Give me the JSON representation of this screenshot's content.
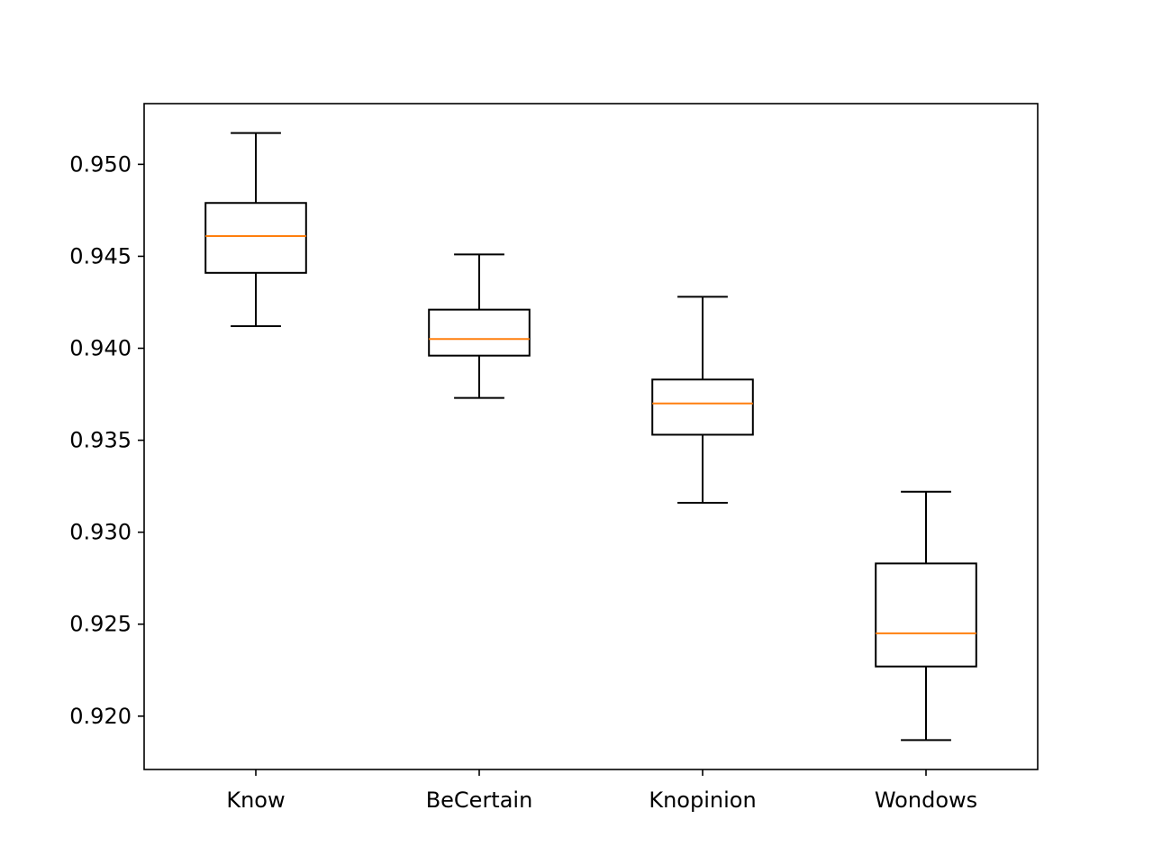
{
  "chart_data": {
    "type": "box",
    "title": "",
    "xlabel": "",
    "ylabel": "",
    "categories": [
      "Know",
      "BeCertain",
      "Knopinion",
      "Wondows"
    ],
    "boxes": [
      {
        "label": "Know",
        "whisker_low": 0.9412,
        "q1": 0.9441,
        "median": 0.9461,
        "q3": 0.9479,
        "whisker_high": 0.9517
      },
      {
        "label": "BeCertain",
        "whisker_low": 0.9373,
        "q1": 0.9396,
        "median": 0.9405,
        "q3": 0.9421,
        "whisker_high": 0.9451
      },
      {
        "label": "Knopinion",
        "whisker_low": 0.9316,
        "q1": 0.9353,
        "median": 0.937,
        "q3": 0.9383,
        "whisker_high": 0.9428
      },
      {
        "label": "Wondows",
        "whisker_low": 0.9187,
        "q1": 0.9227,
        "median": 0.9245,
        "q3": 0.9283,
        "whisker_high": 0.9322
      }
    ],
    "ylim": [
      0.9171,
      0.9533
    ],
    "yticks": [
      "0.920",
      "0.925",
      "0.930",
      "0.935",
      "0.940",
      "0.945",
      "0.950"
    ],
    "grid": false,
    "colors": {
      "box": "#000000",
      "median": "#ff7f0e",
      "axes": "#000000",
      "background": "#ffffff"
    }
  }
}
